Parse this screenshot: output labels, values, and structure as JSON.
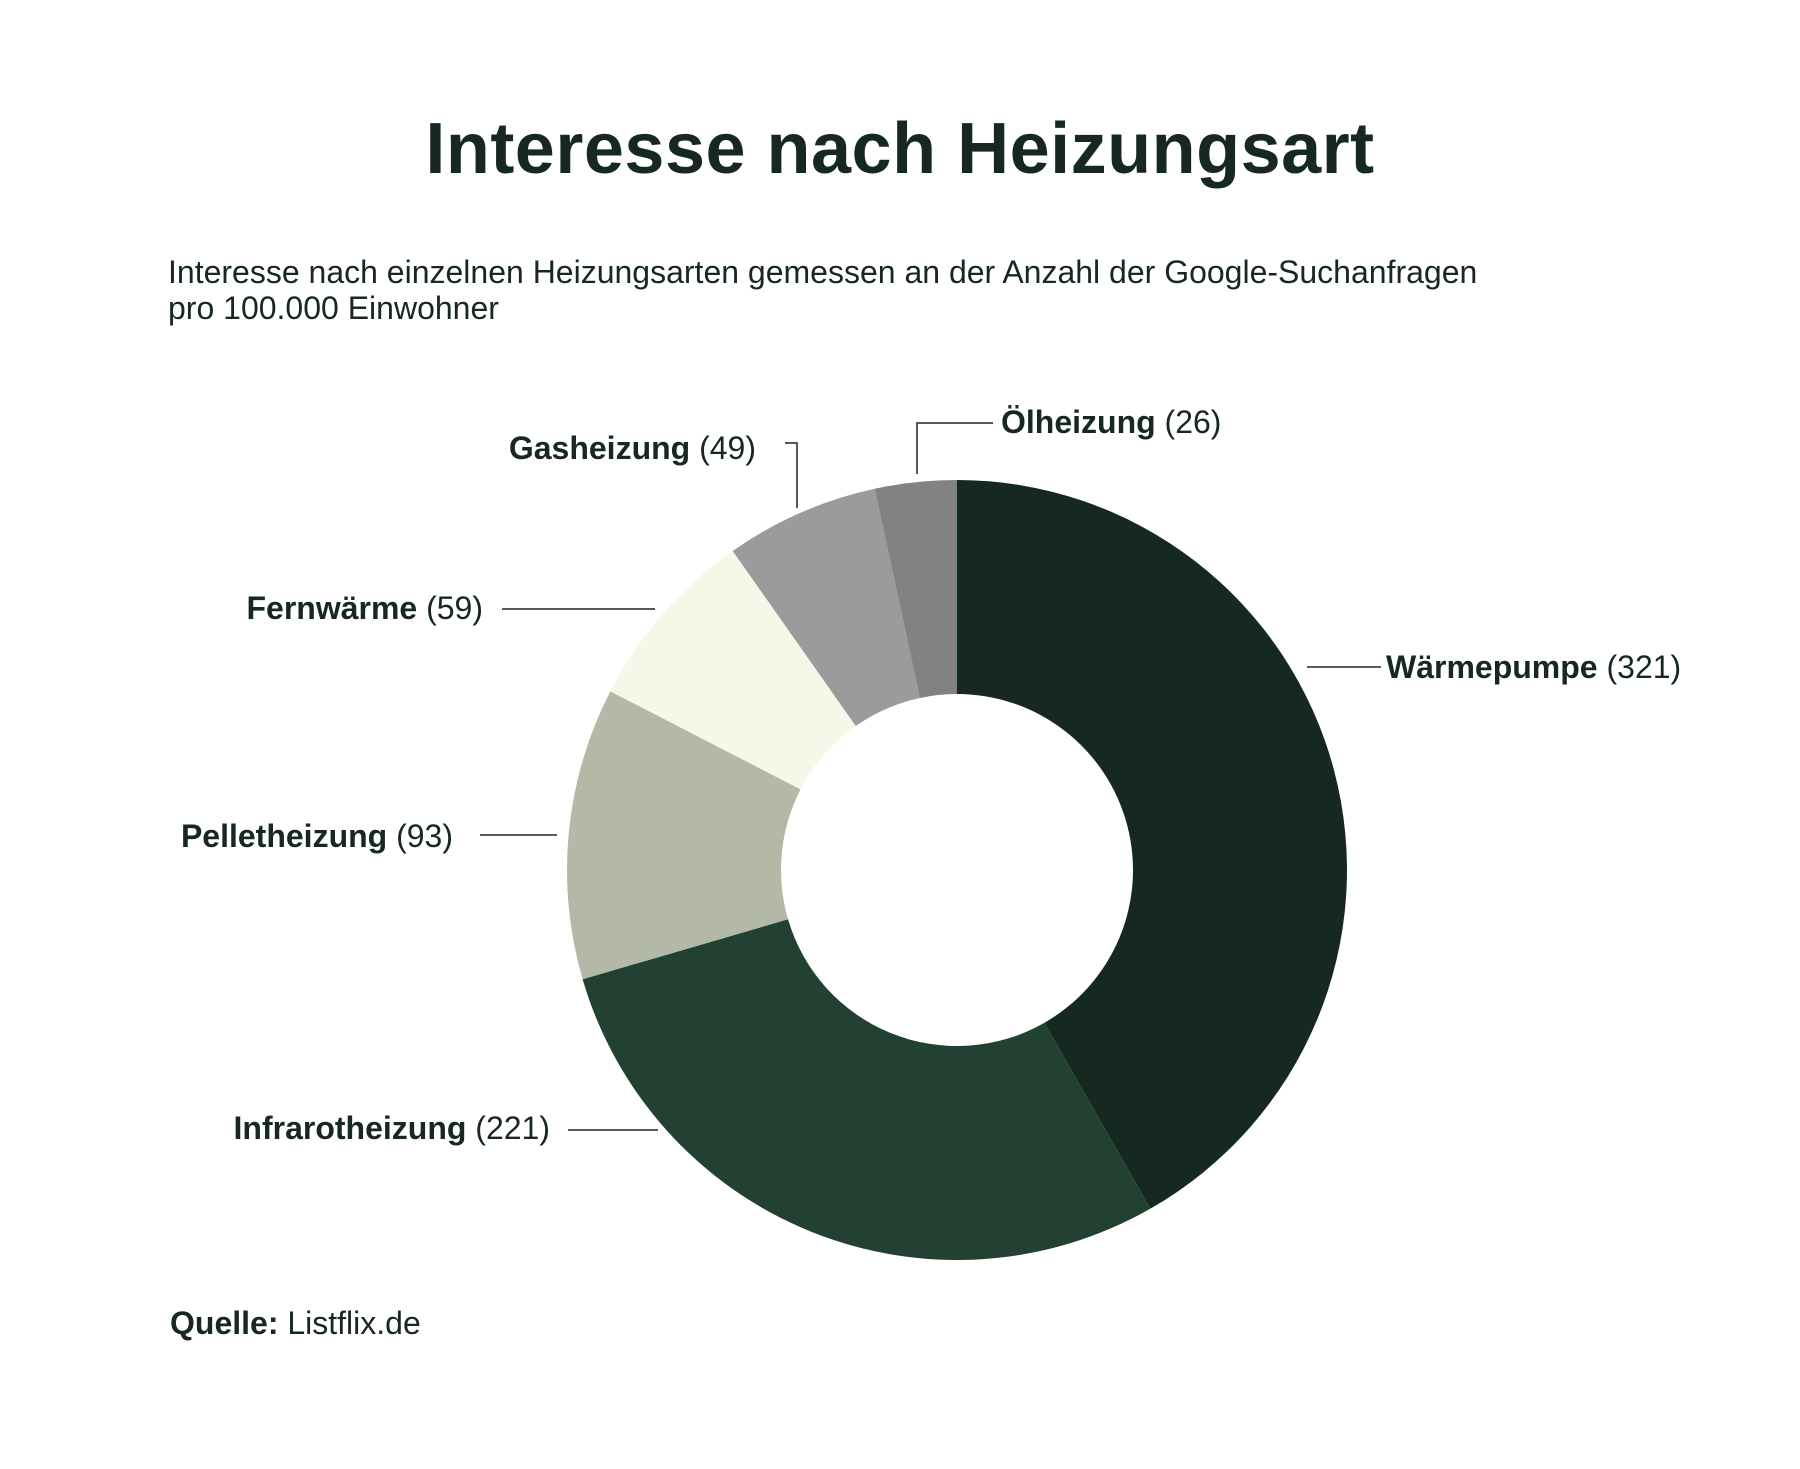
{
  "title": "Interesse nach Heizungsart",
  "subtitle_lines": [
    "Interesse nach einzelnen Heizungsarten gemessen an der Anzahl der Google-Suchanfragen",
    "pro 100.000 Einwohner"
  ],
  "source": {
    "label": "Quelle:",
    "value": "Listflix.de"
  },
  "colors": {
    "text": "#16281f",
    "leader": "#16281f"
  },
  "chart_data": {
    "type": "pie",
    "variant": "donut",
    "title": "Interesse nach Heizungsart",
    "start_angle_deg": 0,
    "direction": "clockwise",
    "slices": [
      {
        "name": "Wärmepumpe",
        "value": 321,
        "label_value": "(321)",
        "color": "#162920"
      },
      {
        "name": "Infrarotheizung",
        "value": 221,
        "label_value": "(221)",
        "color": "#234133"
      },
      {
        "name": "Pelletheizung",
        "value": 93,
        "label_value": "(93)",
        "color": "#b4b8a6"
      },
      {
        "name": "Fernwärme",
        "value": 59,
        "label_value": "(59)",
        "color": "#f4f8e8"
      },
      {
        "name": "Gasheizung",
        "value": 49,
        "label_value": "(49)",
        "color": "#9b9b9b"
      },
      {
        "name": "Ölheizung",
        "value": 26,
        "label_value": "(26)",
        "color": "#828282"
      }
    ]
  }
}
